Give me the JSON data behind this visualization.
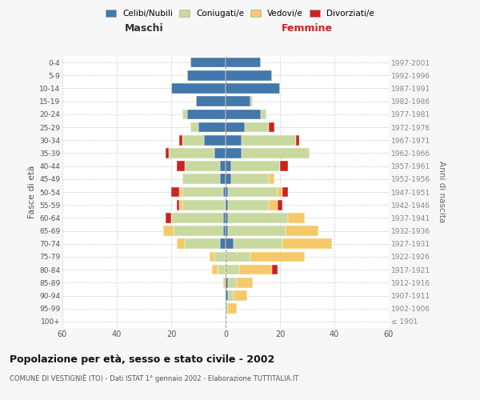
{
  "age_groups": [
    "100+",
    "95-99",
    "90-94",
    "85-89",
    "80-84",
    "75-79",
    "70-74",
    "65-69",
    "60-64",
    "55-59",
    "50-54",
    "45-49",
    "40-44",
    "35-39",
    "30-34",
    "25-29",
    "20-24",
    "15-19",
    "10-14",
    "5-9",
    "0-4"
  ],
  "birth_years": [
    "≤ 1901",
    "1902-1906",
    "1907-1911",
    "1912-1916",
    "1917-1921",
    "1922-1926",
    "1927-1931",
    "1932-1936",
    "1937-1941",
    "1942-1946",
    "1947-1951",
    "1952-1956",
    "1957-1961",
    "1962-1966",
    "1967-1971",
    "1972-1976",
    "1977-1981",
    "1982-1986",
    "1987-1991",
    "1992-1996",
    "1997-2001"
  ],
  "male_celibi": [
    0,
    0,
    0,
    0,
    0,
    0,
    2,
    1,
    1,
    0,
    1,
    2,
    2,
    4,
    8,
    10,
    14,
    11,
    20,
    14,
    13
  ],
  "male_coniugati": [
    0,
    0,
    0,
    0,
    3,
    4,
    13,
    18,
    19,
    16,
    15,
    14,
    13,
    17,
    8,
    3,
    2,
    0,
    0,
    0,
    0
  ],
  "male_vedovi": [
    0,
    0,
    0,
    1,
    2,
    2,
    3,
    4,
    0,
    1,
    1,
    0,
    0,
    0,
    0,
    0,
    0,
    0,
    0,
    0,
    0
  ],
  "male_divorziati": [
    0,
    0,
    0,
    0,
    0,
    0,
    0,
    0,
    2,
    1,
    3,
    0,
    3,
    1,
    1,
    0,
    0,
    0,
    0,
    0,
    0
  ],
  "female_nubili": [
    0,
    0,
    1,
    1,
    0,
    0,
    3,
    1,
    1,
    1,
    1,
    2,
    2,
    6,
    6,
    7,
    13,
    9,
    20,
    17,
    13
  ],
  "female_coniugate": [
    0,
    1,
    2,
    3,
    5,
    9,
    18,
    21,
    22,
    15,
    18,
    14,
    18,
    25,
    20,
    9,
    2,
    1,
    0,
    0,
    0
  ],
  "female_vedove": [
    0,
    3,
    5,
    6,
    12,
    20,
    18,
    12,
    6,
    3,
    2,
    2,
    0,
    0,
    0,
    0,
    0,
    0,
    0,
    0,
    0
  ],
  "female_divorziate": [
    0,
    0,
    0,
    0,
    2,
    0,
    0,
    0,
    0,
    2,
    2,
    0,
    3,
    0,
    1,
    2,
    0,
    0,
    0,
    0,
    0
  ],
  "color_celibi": "#4477AA",
  "color_coniugati": "#C8D9A0",
  "color_vedovi": "#F5C96A",
  "color_divorziati": "#CC2222",
  "xlim": 60,
  "title": "Popolazione per età, sesso e stato civile - 2002",
  "subtitle": "COMUNE DI VESTIGNIÈ (TO) - Dati ISTAT 1° gennaio 2002 - Elaborazione TUTTITALIA.IT",
  "ylabel": "Fasce di età",
  "ylabel_right": "Anni di nascita",
  "label_maschi": "Maschi",
  "label_femmine": "Femmine",
  "legend_labels": [
    "Celibi/Nubili",
    "Coniugati/e",
    "Vedovi/e",
    "Divorziati/e"
  ],
  "bg_color": "#f7f7f7",
  "plot_bg_color": "#ffffff",
  "grid_color": "#cccccc",
  "bar_height": 0.78
}
